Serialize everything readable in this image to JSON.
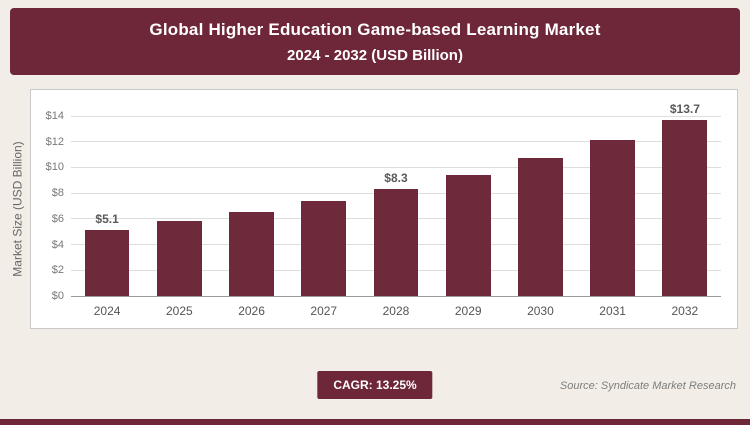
{
  "header": {
    "title_line1": "Global Higher Education Game-based Learning Market",
    "title_line2": "2024 - 2032 (USD Billion)"
  },
  "chart_data": {
    "type": "bar",
    "title": "Global Higher Education Game-based Learning Market",
    "subtitle": "2024 - 2032 (USD Billion)",
    "categories": [
      "2024",
      "2025",
      "2026",
      "2027",
      "2028",
      "2029",
      "2030",
      "2031",
      "2032"
    ],
    "values": [
      5.1,
      5.8,
      6.5,
      7.4,
      8.3,
      9.4,
      10.7,
      12.1,
      13.7
    ],
    "bar_labels": {
      "0": "$5.1",
      "4": "$8.3",
      "8": "$13.7"
    },
    "xlabel": "",
    "ylabel": "Market Size (USD Billion)",
    "ylim": [
      0,
      14
    ],
    "ytick_step": 2,
    "ytick_prefix": "$",
    "grid": true,
    "legend": "none",
    "bar_color": "#6e2a3a"
  },
  "footer": {
    "cagr": "CAGR: 13.25%",
    "source": "Source: Syndicate Market Research"
  },
  "colors": {
    "maroon": "#6e2639",
    "bar": "#6e2a3a",
    "page_bg": "#f2eee7",
    "panel_bg": "#ffffff"
  }
}
